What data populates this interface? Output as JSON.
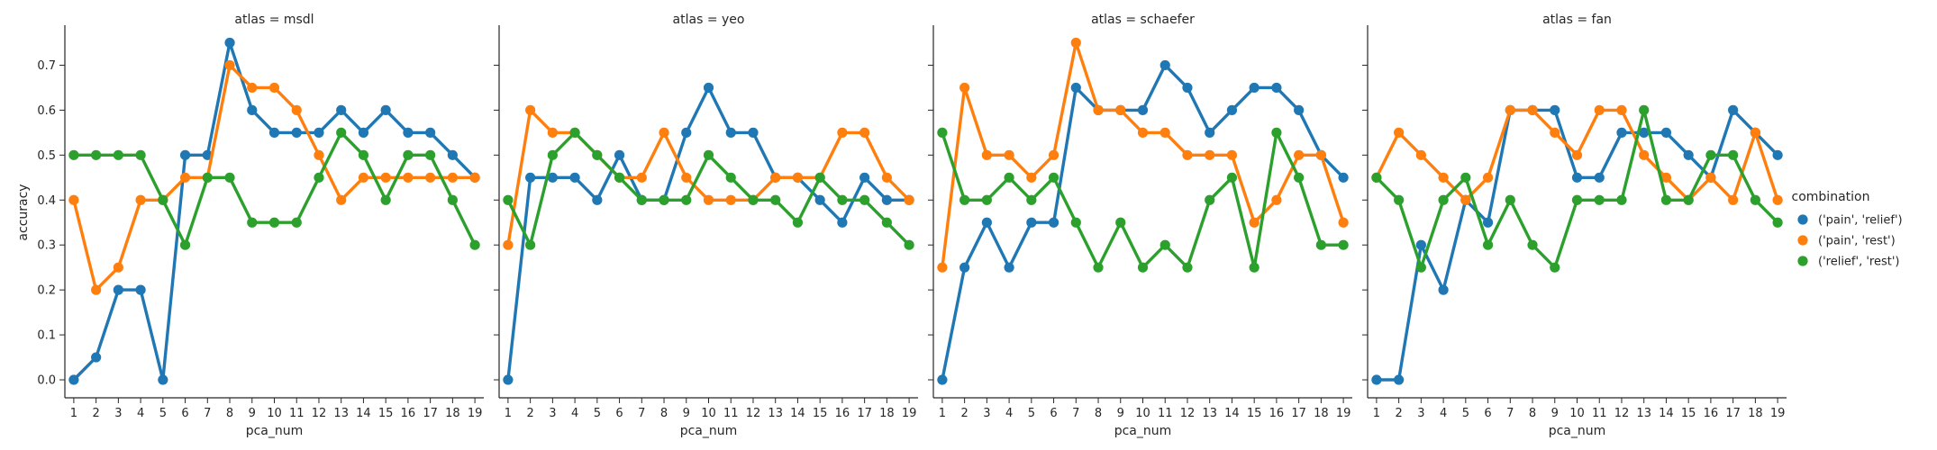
{
  "chart_data": {
    "type": "line",
    "layout": "facets",
    "xlabel": "pca_num",
    "ylabel": "accuracy",
    "x": [
      1,
      2,
      3,
      4,
      5,
      6,
      7,
      8,
      9,
      10,
      11,
      12,
      13,
      14,
      15,
      16,
      17,
      18,
      19
    ],
    "yticks": [
      "0.0",
      "0.1",
      "0.2",
      "0.3",
      "0.4",
      "0.5",
      "0.6",
      "0.7"
    ],
    "ylim": [
      -0.04,
      0.785
    ],
    "sharey": true,
    "grid": false,
    "legend": {
      "title": "combination",
      "placement": "right",
      "entries": [
        {
          "label": "('pain', 'relief')",
          "color": "#1f77b4"
        },
        {
          "label": "('pain', 'rest')",
          "color": "#ff7f0e"
        },
        {
          "label": "('relief', 'rest')",
          "color": "#2ca02c"
        }
      ]
    },
    "panels": [
      {
        "title": "atlas = msdl",
        "series": [
          {
            "name": "('pain', 'relief')",
            "color": "#1f77b4",
            "values": [
              0.0,
              0.05,
              0.2,
              0.2,
              0.0,
              0.5,
              0.5,
              0.75,
              0.6,
              0.55,
              0.55,
              0.55,
              0.6,
              0.55,
              0.6,
              0.55,
              0.55,
              0.5,
              0.45
            ]
          },
          {
            "name": "('pain', 'rest')",
            "color": "#ff7f0e",
            "values": [
              0.4,
              0.2,
              0.25,
              0.4,
              0.4,
              0.45,
              0.45,
              0.7,
              0.65,
              0.65,
              0.6,
              0.5,
              0.4,
              0.45,
              0.45,
              0.45,
              0.45,
              0.45,
              0.45
            ]
          },
          {
            "name": "('relief', 'rest')",
            "color": "#2ca02c",
            "values": [
              0.5,
              0.5,
              0.5,
              0.5,
              0.4,
              0.3,
              0.45,
              0.45,
              0.35,
              0.35,
              0.35,
              0.45,
              0.55,
              0.5,
              0.4,
              0.5,
              0.5,
              0.4,
              0.3
            ]
          }
        ]
      },
      {
        "title": "atlas = yeo",
        "series": [
          {
            "name": "('pain', 'relief')",
            "color": "#1f77b4",
            "values": [
              0.0,
              0.45,
              0.45,
              0.45,
              0.4,
              0.5,
              0.4,
              0.4,
              0.55,
              0.65,
              0.55,
              0.55,
              0.45,
              0.45,
              0.4,
              0.35,
              0.45,
              0.4,
              0.4
            ]
          },
          {
            "name": "('pain', 'rest')",
            "color": "#ff7f0e",
            "values": [
              0.3,
              0.6,
              0.55,
              0.55,
              0.5,
              0.45,
              0.45,
              0.55,
              0.45,
              0.4,
              0.4,
              0.4,
              0.45,
              0.45,
              0.45,
              0.55,
              0.55,
              0.45,
              0.4
            ]
          },
          {
            "name": "('relief', 'rest')",
            "color": "#2ca02c",
            "values": [
              0.4,
              0.3,
              0.5,
              0.55,
              0.5,
              0.45,
              0.4,
              0.4,
              0.4,
              0.5,
              0.45,
              0.4,
              0.4,
              0.35,
              0.45,
              0.4,
              0.4,
              0.35,
              0.3
            ]
          }
        ]
      },
      {
        "title": "atlas = schaefer",
        "series": [
          {
            "name": "('pain', 'relief')",
            "color": "#1f77b4",
            "values": [
              0.0,
              0.25,
              0.35,
              0.25,
              0.35,
              0.35,
              0.65,
              0.6,
              0.6,
              0.6,
              0.7,
              0.65,
              0.55,
              0.6,
              0.65,
              0.65,
              0.6,
              0.5,
              0.45
            ]
          },
          {
            "name": "('pain', 'rest')",
            "color": "#ff7f0e",
            "values": [
              0.25,
              0.65,
              0.5,
              0.5,
              0.45,
              0.5,
              0.75,
              0.6,
              0.6,
              0.55,
              0.55,
              0.5,
              0.5,
              0.5,
              0.35,
              0.4,
              0.5,
              0.5,
              0.35
            ]
          },
          {
            "name": "('relief', 'rest')",
            "color": "#2ca02c",
            "values": [
              0.55,
              0.4,
              0.4,
              0.45,
              0.4,
              0.45,
              0.35,
              0.25,
              0.35,
              0.25,
              0.3,
              0.25,
              0.4,
              0.45,
              0.25,
              0.55,
              0.45,
              0.3,
              0.3
            ]
          }
        ]
      },
      {
        "title": "atlas = fan",
        "series": [
          {
            "name": "('pain', 'relief')",
            "color": "#1f77b4",
            "values": [
              0.0,
              0.0,
              0.3,
              0.2,
              0.4,
              0.35,
              0.6,
              0.6,
              0.6,
              0.45,
              0.45,
              0.55,
              0.55,
              0.55,
              0.5,
              0.45,
              0.6,
              0.55,
              0.5
            ]
          },
          {
            "name": "('pain', 'rest')",
            "color": "#ff7f0e",
            "values": [
              0.45,
              0.55,
              0.5,
              0.45,
              0.4,
              0.45,
              0.6,
              0.6,
              0.55,
              0.5,
              0.6,
              0.6,
              0.5,
              0.45,
              0.4,
              0.45,
              0.4,
              0.55,
              0.4
            ]
          },
          {
            "name": "('relief', 'rest')",
            "color": "#2ca02c",
            "values": [
              0.45,
              0.4,
              0.25,
              0.4,
              0.45,
              0.3,
              0.4,
              0.3,
              0.25,
              0.4,
              0.4,
              0.4,
              0.6,
              0.4,
              0.4,
              0.5,
              0.5,
              0.4,
              0.35
            ]
          }
        ]
      }
    ]
  }
}
